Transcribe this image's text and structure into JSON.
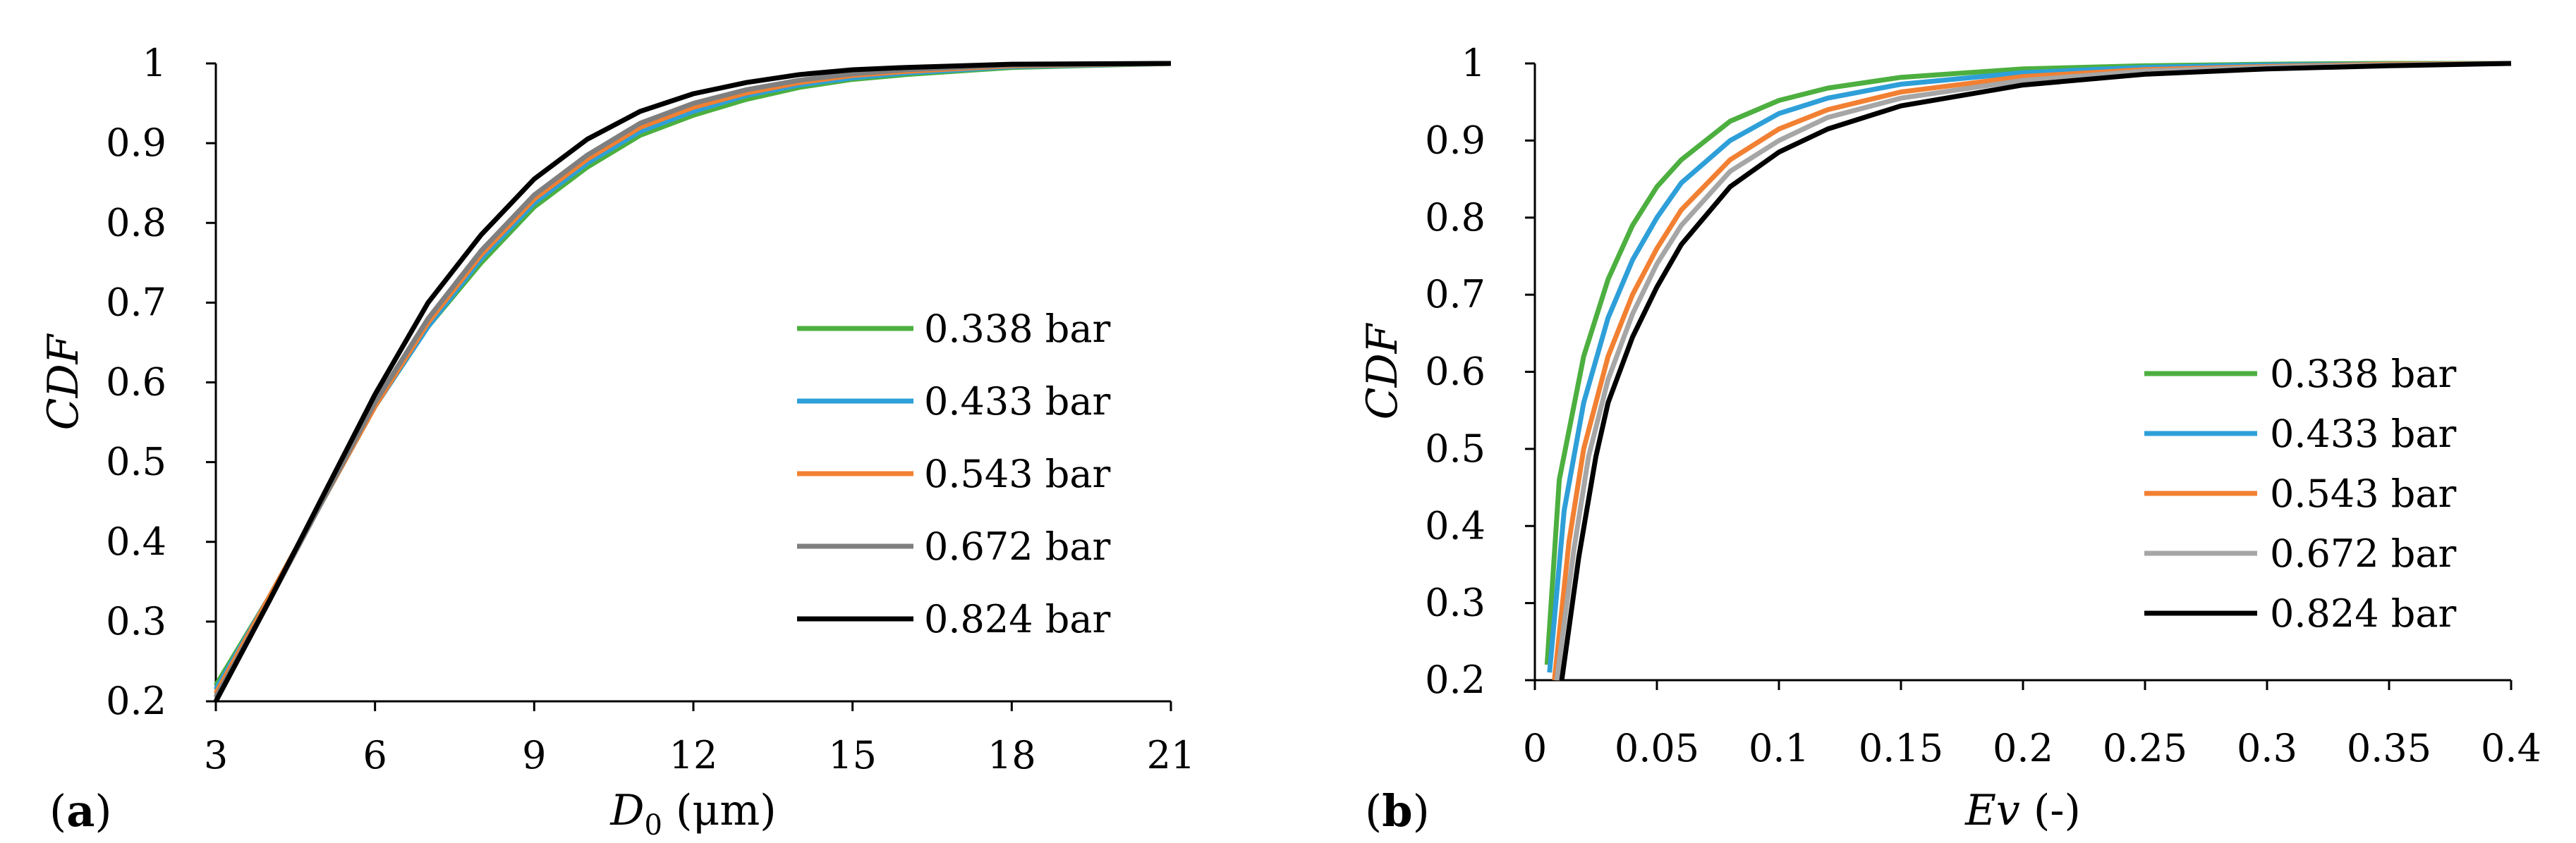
{
  "legend_label_suffix": " bar",
  "chart_data": [
    {
      "type": "line",
      "panel_label": "a",
      "xlabel": "D0 (μm)",
      "xlabel_parts": {
        "main": "D",
        "sub": "0",
        "unit": " (μm)"
      },
      "ylabel": "CDF",
      "xlim": [
        3,
        21
      ],
      "ylim": [
        0.2,
        1
      ],
      "xticks": [
        "3",
        "6",
        "9",
        "12",
        "15",
        "18",
        "21"
      ],
      "yticks": [
        "0.2",
        "0.3",
        "0.4",
        "0.5",
        "0.6",
        "0.7",
        "0.8",
        "0.9",
        "1"
      ],
      "legend_position": "center-right",
      "series": [
        {
          "name": "0.338 bar",
          "color": "#4caf3f",
          "x": [
            3,
            4,
            5,
            6,
            7,
            8,
            9,
            10,
            11,
            12,
            13,
            14,
            15,
            16,
            18,
            21
          ],
          "y": [
            0.22,
            0.33,
            0.45,
            0.57,
            0.67,
            0.75,
            0.82,
            0.87,
            0.91,
            0.935,
            0.955,
            0.97,
            0.98,
            0.986,
            0.995,
            1.0
          ]
        },
        {
          "name": "0.433 bar",
          "color": "#2e9fd8",
          "x": [
            3,
            4,
            5,
            6,
            7,
            8,
            9,
            10,
            11,
            12,
            13,
            14,
            15,
            16,
            18,
            21
          ],
          "y": [
            0.215,
            0.33,
            0.45,
            0.57,
            0.67,
            0.755,
            0.825,
            0.875,
            0.915,
            0.94,
            0.96,
            0.973,
            0.982,
            0.988,
            0.996,
            1.0
          ]
        },
        {
          "name": "0.543 bar",
          "color": "#f28032",
          "x": [
            3,
            4,
            5,
            6,
            7,
            8,
            9,
            10,
            11,
            12,
            13,
            14,
            15,
            16,
            18,
            21
          ],
          "y": [
            0.21,
            0.33,
            0.45,
            0.57,
            0.675,
            0.76,
            0.83,
            0.88,
            0.92,
            0.945,
            0.963,
            0.976,
            0.985,
            0.99,
            0.997,
            1.0
          ]
        },
        {
          "name": "0.672 bar",
          "color": "#7f7f7f",
          "x": [
            3,
            4,
            5,
            6,
            7,
            8,
            9,
            10,
            11,
            12,
            13,
            14,
            15,
            16,
            18,
            21
          ],
          "y": [
            0.205,
            0.325,
            0.45,
            0.575,
            0.68,
            0.765,
            0.835,
            0.885,
            0.925,
            0.95,
            0.967,
            0.979,
            0.987,
            0.992,
            0.998,
            1.0
          ]
        },
        {
          "name": "0.824 bar",
          "color": "#000000",
          "x": [
            3,
            4,
            5,
            6,
            7,
            8,
            9,
            10,
            11,
            12,
            13,
            14,
            15,
            16,
            18,
            21
          ],
          "y": [
            0.2,
            0.325,
            0.455,
            0.585,
            0.7,
            0.785,
            0.855,
            0.905,
            0.94,
            0.962,
            0.976,
            0.986,
            0.992,
            0.995,
            0.999,
            1.0
          ]
        }
      ]
    },
    {
      "type": "line",
      "panel_label": "b",
      "xlabel": "Ev (-)",
      "xlabel_parts": {
        "main": "Ev",
        "unit": " (-)"
      },
      "ylabel": "CDF",
      "xlim": [
        0,
        0.4
      ],
      "ylim": [
        0.2,
        1
      ],
      "xticks": [
        "0",
        "0.05",
        "0.1",
        "0.15",
        "0.2",
        "0.25",
        "0.3",
        "0.35",
        "0.4"
      ],
      "yticks": [
        "0.2",
        "0.3",
        "0.4",
        "0.5",
        "0.6",
        "0.7",
        "0.8",
        "0.9",
        "1"
      ],
      "legend_position": "bottom-right",
      "series": [
        {
          "name": "0.338 bar",
          "color": "#4caf3f",
          "x": [
            0.005,
            0.01,
            0.02,
            0.03,
            0.04,
            0.05,
            0.06,
            0.08,
            0.1,
            0.12,
            0.15,
            0.2,
            0.25,
            0.3,
            0.35,
            0.4
          ],
          "y": [
            0.22,
            0.46,
            0.62,
            0.72,
            0.79,
            0.84,
            0.875,
            0.925,
            0.952,
            0.968,
            0.982,
            0.993,
            0.997,
            0.999,
            1.0,
            1.0
          ]
        },
        {
          "name": "0.433 bar",
          "color": "#2e9fd8",
          "x": [
            0.006,
            0.012,
            0.02,
            0.03,
            0.04,
            0.05,
            0.06,
            0.08,
            0.1,
            0.12,
            0.15,
            0.2,
            0.25,
            0.3,
            0.35,
            0.4
          ],
          "y": [
            0.21,
            0.42,
            0.56,
            0.67,
            0.745,
            0.8,
            0.845,
            0.9,
            0.935,
            0.955,
            0.973,
            0.988,
            0.995,
            0.998,
            0.999,
            1.0
          ]
        },
        {
          "name": "0.543 bar",
          "color": "#f28032",
          "x": [
            0.008,
            0.014,
            0.02,
            0.03,
            0.04,
            0.05,
            0.06,
            0.08,
            0.1,
            0.12,
            0.15,
            0.2,
            0.25,
            0.3,
            0.35,
            0.4
          ],
          "y": [
            0.2,
            0.38,
            0.5,
            0.62,
            0.7,
            0.76,
            0.81,
            0.875,
            0.915,
            0.94,
            0.963,
            0.983,
            0.992,
            0.996,
            0.999,
            1.0
          ]
        },
        {
          "name": "0.672 bar",
          "color": "#a6a6a6",
          "x": [
            0.009,
            0.016,
            0.022,
            0.03,
            0.04,
            0.05,
            0.06,
            0.08,
            0.1,
            0.12,
            0.15,
            0.2,
            0.25,
            0.3,
            0.35,
            0.4
          ],
          "y": [
            0.2,
            0.37,
            0.49,
            0.59,
            0.675,
            0.74,
            0.79,
            0.86,
            0.9,
            0.93,
            0.955,
            0.978,
            0.99,
            0.995,
            0.998,
            1.0
          ]
        },
        {
          "name": "0.824 bar",
          "color": "#000000",
          "x": [
            0.011,
            0.018,
            0.025,
            0.03,
            0.04,
            0.05,
            0.06,
            0.08,
            0.1,
            0.12,
            0.15,
            0.2,
            0.25,
            0.3,
            0.35,
            0.4
          ],
          "y": [
            0.2,
            0.36,
            0.49,
            0.56,
            0.645,
            0.71,
            0.765,
            0.84,
            0.885,
            0.915,
            0.945,
            0.972,
            0.986,
            0.993,
            0.997,
            1.0
          ]
        }
      ]
    }
  ]
}
